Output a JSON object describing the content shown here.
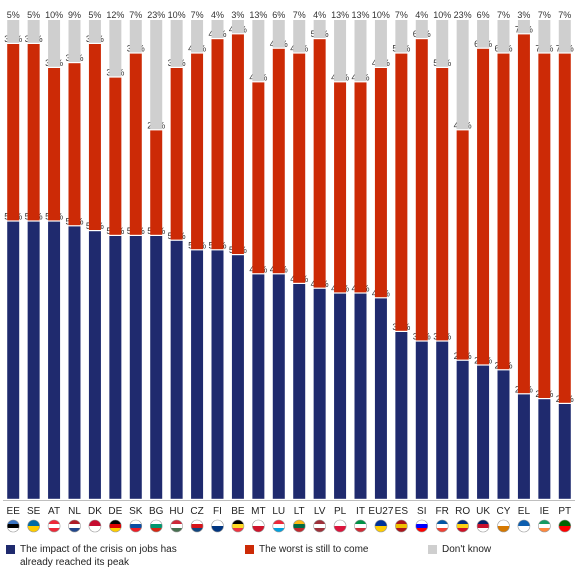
{
  "chart_data": {
    "type": "bar",
    "stacked": true,
    "percent": true,
    "categories": [
      "EE",
      "SE",
      "AT",
      "NL",
      "DK",
      "DE",
      "SK",
      "BG",
      "HU",
      "CZ",
      "FI",
      "BE",
      "MT",
      "LU",
      "LT",
      "LV",
      "PL",
      "IT",
      "EU27",
      "ES",
      "SI",
      "FR",
      "RO",
      "UK",
      "CY",
      "EL",
      "IE",
      "PT"
    ],
    "series": [
      {
        "name": "The impact of the crisis on jobs has already reached its peak",
        "color": "#1f2a6e",
        "values": [
          58,
          58,
          58,
          57,
          56,
          55,
          55,
          55,
          54,
          52,
          52,
          51,
          47,
          47,
          45,
          44,
          43,
          43,
          42,
          35,
          33,
          33,
          29,
          28,
          27,
          22,
          21,
          20
        ]
      },
      {
        "name": "The worst is still to come",
        "color": "#cc2a06",
        "values": [
          37,
          37,
          32,
          34,
          39,
          33,
          38,
          22,
          36,
          41,
          44,
          46,
          40,
          47,
          48,
          52,
          44,
          44,
          48,
          58,
          63,
          57,
          48,
          66,
          66,
          75,
          72,
          73
        ]
      },
      {
        "name": "Don't know",
        "color": "#cfcfcf",
        "values": [
          5,
          5,
          10,
          9,
          5,
          12,
          7,
          23,
          10,
          7,
          4,
          3,
          13,
          6,
          7,
          4,
          13,
          13,
          10,
          7,
          4,
          10,
          23,
          6,
          7,
          3,
          7,
          7
        ]
      }
    ],
    "value_labels": {
      "jobs": [
        "58%",
        "58%",
        "58%",
        "57%",
        "56%",
        "55%",
        "55%",
        "55%",
        "54%",
        "52%",
        "52%",
        "51%",
        "47%",
        "47%",
        "45%",
        "44%",
        "43%",
        "43%",
        "42%",
        "35%",
        "33%",
        "33%",
        "29%",
        "28%",
        "27%",
        "22%",
        "21%",
        "20%"
      ],
      "worst": [
        "37%",
        "37%",
        "32%",
        "34%",
        "39%",
        "33%",
        "38%",
        "22%",
        "36%",
        "41%",
        "44%",
        "46%",
        "40%",
        "47%",
        "48%",
        "52%",
        "44%",
        "44%",
        "48%",
        "58%",
        "63%",
        "57%",
        "48%",
        "66%",
        "66%",
        "75%",
        "72%",
        "73%"
      ],
      "dk": [
        "5%",
        "5%",
        "10%",
        "9%",
        "5%",
        "12%",
        "7%",
        "23%",
        "10%",
        "7%",
        "4%",
        "3%",
        "13%",
        "6%",
        "7%",
        "4%",
        "13%",
        "13%",
        "10%",
        "7%",
        "4%",
        "10%",
        "23%",
        "6%",
        "7%",
        "3%",
        "7%",
        "7%"
      ]
    },
    "flag_colors": [
      [
        "#3a75c4",
        "#000000",
        "#ffffff"
      ],
      [
        "#006aa7",
        "#fecc00"
      ],
      [
        "#ed2939",
        "#ffffff",
        "#ed2939"
      ],
      [
        "#ae1c28",
        "#ffffff",
        "#21468b"
      ],
      [
        "#c60c30",
        "#ffffff"
      ],
      [
        "#000000",
        "#dd0000",
        "#ffce00"
      ],
      [
        "#ffffff",
        "#0b4ea2",
        "#ee1c25"
      ],
      [
        "#ffffff",
        "#00966e",
        "#d62612"
      ],
      [
        "#ce2939",
        "#ffffff",
        "#477050"
      ],
      [
        "#ffffff",
        "#d7141a",
        "#11457e"
      ],
      [
        "#ffffff",
        "#003580"
      ],
      [
        "#000000",
        "#fdda24",
        "#ef3340"
      ],
      [
        "#ffffff",
        "#cf142b"
      ],
      [
        "#ed2939",
        "#ffffff",
        "#00a1de"
      ],
      [
        "#fdb913",
        "#006a44",
        "#c1272d"
      ],
      [
        "#9e3039",
        "#ffffff",
        "#9e3039"
      ],
      [
        "#ffffff",
        "#dc143c"
      ],
      [
        "#009246",
        "#ffffff",
        "#ce2b37"
      ],
      [
        "#003399",
        "#ffcc00"
      ],
      [
        "#aa151b",
        "#f1bf00",
        "#aa151b"
      ],
      [
        "#ffffff",
        "#0000ff",
        "#ff0000"
      ],
      [
        "#0055a4",
        "#ffffff",
        "#ef4135"
      ],
      [
        "#002b7f",
        "#fcd116",
        "#ce1126"
      ],
      [
        "#012169",
        "#c8102e",
        "#ffffff"
      ],
      [
        "#ffffff",
        "#d57800"
      ],
      [
        "#0d5eaf",
        "#ffffff"
      ],
      [
        "#169b62",
        "#ffffff",
        "#ff883e"
      ],
      [
        "#006600",
        "#ff0000"
      ]
    ]
  },
  "legend": {
    "jobs": "The impact of the crisis on jobs has already reached its peak",
    "worst": "The worst is still to come",
    "dk": "Don't know"
  }
}
